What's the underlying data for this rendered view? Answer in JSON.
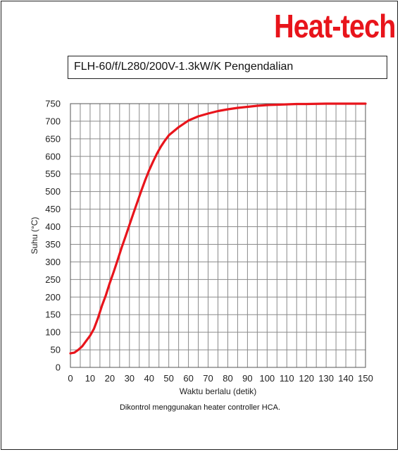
{
  "brand": "Heat-tech",
  "note": "Dikontrol menggunakan heater controller HCA.",
  "chart_data": {
    "type": "line",
    "title": "FLH-60/f/L280/200V-1.3kW/K  Pengendalian",
    "xlabel": "Waktu berlalu (detik)",
    "ylabel": "Suhu (°C)",
    "xlim": [
      0,
      150
    ],
    "ylim": [
      0,
      750
    ],
    "x_ticks": [
      0,
      10,
      20,
      30,
      40,
      50,
      60,
      70,
      80,
      90,
      100,
      110,
      120,
      130,
      140,
      150
    ],
    "y_ticks": [
      0,
      50,
      100,
      150,
      200,
      250,
      300,
      350,
      400,
      450,
      500,
      550,
      600,
      650,
      700,
      750
    ],
    "grid": true,
    "series_color": "#e8141b",
    "series": [
      {
        "x": [
          0,
          2,
          4,
          6,
          8,
          10,
          12,
          14,
          16,
          18,
          20,
          22,
          24,
          26,
          28,
          30,
          32,
          34,
          36,
          38,
          40,
          42,
          44,
          46,
          48,
          50,
          55,
          60,
          65,
          70,
          75,
          80,
          85,
          90,
          95,
          100,
          105,
          110,
          115,
          120,
          130,
          140,
          150
        ],
        "y": [
          40,
          42,
          50,
          60,
          75,
          90,
          110,
          140,
          175,
          205,
          240,
          272,
          305,
          340,
          372,
          405,
          438,
          470,
          502,
          532,
          560,
          585,
          608,
          628,
          645,
          660,
          683,
          702,
          714,
          722,
          729,
          734,
          738,
          741,
          744,
          746,
          747,
          748,
          749,
          749,
          750,
          750,
          750
        ]
      }
    ]
  }
}
